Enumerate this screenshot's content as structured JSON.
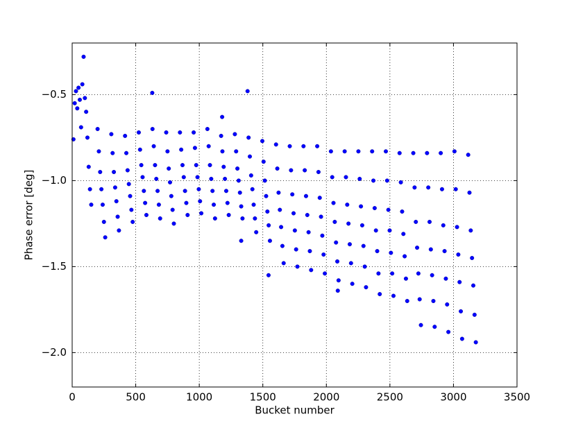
{
  "chart_data": {
    "type": "scatter",
    "xlabel": "Bucket number",
    "ylabel": "Phase error [deg]",
    "xlim": [
      0,
      3500
    ],
    "ylim": [
      -2.2,
      -0.2
    ],
    "xticks": [
      0,
      500,
      1000,
      1500,
      2000,
      2500,
      3000,
      3500
    ],
    "yticks": [
      {
        "value": -0.5,
        "label": "−0.5"
      },
      {
        "value": -1.0,
        "label": "−1.0"
      },
      {
        "value": -1.5,
        "label": "−1.5"
      },
      {
        "value": -2.0,
        "label": "−2.0"
      }
    ],
    "grid": true,
    "x": [
      10,
      20,
      30,
      40,
      50,
      60,
      70,
      80,
      90,
      100,
      110,
      120,
      130,
      140,
      150,
      200,
      210,
      220,
      230,
      240,
      250,
      260,
      308,
      318,
      328,
      338,
      348,
      358,
      368,
      416,
      426,
      436,
      446,
      456,
      466,
      476,
      524,
      534,
      544,
      554,
      564,
      574,
      584,
      632,
      642,
      652,
      662,
      672,
      682,
      692,
      740,
      750,
      760,
      770,
      780,
      790,
      800,
      848,
      858,
      868,
      878,
      888,
      898,
      908,
      956,
      966,
      976,
      986,
      996,
      1006,
      1016,
      1064,
      1074,
      1084,
      1094,
      1104,
      1114,
      1124,
      1172,
      1182,
      1192,
      1202,
      1212,
      1222,
      1232,
      1280,
      1290,
      1300,
      1310,
      1320,
      1330,
      1340,
      1388,
      1398,
      1408,
      1418,
      1428,
      1438,
      1448,
      1496,
      1506,
      1516,
      1526,
      1536,
      1546,
      1556,
      1604,
      1614,
      1624,
      1634,
      1644,
      1654,
      1664,
      1712,
      1722,
      1732,
      1742,
      1752,
      1762,
      1772,
      1820,
      1830,
      1840,
      1850,
      1860,
      1870,
      1880,
      1928,
      1938,
      1948,
      1958,
      1968,
      1978,
      1988,
      2036,
      2046,
      2056,
      2066,
      2076,
      2086,
      2096,
      2144,
      2154,
      2164,
      2174,
      2184,
      2194,
      2204,
      2252,
      2262,
      2272,
      2282,
      2292,
      2302,
      2312,
      2360,
      2370,
      2380,
      2390,
      2400,
      2410,
      2420,
      2468,
      2478,
      2488,
      2498,
      2508,
      2518,
      2528,
      2576,
      2586,
      2596,
      2606,
      2616,
      2626,
      2636,
      2684,
      2694,
      2704,
      2714,
      2724,
      2734,
      2744,
      2792,
      2802,
      2812,
      2822,
      2832,
      2842,
      2852,
      2900,
      2910,
      2920,
      2930,
      2940,
      2950,
      2960,
      3008,
      3018,
      3028,
      3038,
      3048,
      3058,
      3068,
      3116,
      3126,
      3136,
      3146,
      3156,
      3166,
      3176,
      630,
      1380,
      1180,
      1330,
      1545,
      2090
    ],
    "series": [
      {
        "color": "#0000ff",
        "values": [
          -0.76,
          -0.55,
          -0.48,
          -0.58,
          -0.46,
          -0.53,
          -0.69,
          -0.44,
          -0.28,
          -0.52,
          -0.6,
          -0.75,
          -0.92,
          -1.05,
          -1.14,
          -0.7,
          -0.83,
          -0.95,
          -1.05,
          -1.14,
          -1.24,
          -1.33,
          -0.73,
          -0.84,
          -0.95,
          -1.04,
          -1.12,
          -1.21,
          -1.29,
          -0.74,
          -0.84,
          -0.94,
          -1.02,
          -1.09,
          -1.17,
          -1.24,
          -0.72,
          -0.82,
          -0.91,
          -0.98,
          -1.06,
          -1.13,
          -1.2,
          -0.7,
          -0.8,
          -0.91,
          -0.99,
          -1.06,
          -1.14,
          -1.22,
          -0.72,
          -0.83,
          -0.93,
          -1.01,
          -1.09,
          -1.17,
          -1.25,
          -0.72,
          -0.82,
          -0.91,
          -0.98,
          -1.06,
          -1.13,
          -1.2,
          -0.72,
          -0.81,
          -0.91,
          -0.98,
          -1.05,
          -1.12,
          -1.19,
          -0.7,
          -0.8,
          -0.91,
          -0.99,
          -1.06,
          -1.14,
          -1.22,
          -0.74,
          -0.83,
          -0.92,
          -0.99,
          -1.06,
          -1.13,
          -1.2,
          -0.73,
          -0.83,
          -0.93,
          -1.0,
          -1.07,
          -1.15,
          -1.22,
          -0.75,
          -0.86,
          -0.97,
          -1.05,
          -1.14,
          -1.22,
          -1.3,
          -0.77,
          -0.89,
          -1.0,
          -1.09,
          -1.18,
          -1.26,
          -1.35,
          -0.79,
          -0.93,
          -1.07,
          -1.17,
          -1.27,
          -1.38,
          -1.48,
          -0.8,
          -0.94,
          -1.08,
          -1.19,
          -1.29,
          -1.4,
          -1.5,
          -0.8,
          -0.94,
          -1.09,
          -1.2,
          -1.3,
          -1.41,
          -1.52,
          -0.8,
          -0.95,
          -1.1,
          -1.21,
          -1.32,
          -1.43,
          -1.54,
          -0.83,
          -0.98,
          -1.13,
          -1.24,
          -1.36,
          -1.47,
          -1.58,
          -0.83,
          -0.98,
          -1.14,
          -1.25,
          -1.37,
          -1.48,
          -1.6,
          -0.83,
          -0.99,
          -1.15,
          -1.26,
          -1.38,
          -1.5,
          -1.62,
          -0.83,
          -1.0,
          -1.16,
          -1.29,
          -1.41,
          -1.54,
          -1.66,
          -0.83,
          -1.0,
          -1.17,
          -1.29,
          -1.42,
          -1.54,
          -1.67,
          -0.84,
          -1.01,
          -1.18,
          -1.31,
          -1.44,
          -1.57,
          -1.7,
          -0.84,
          -1.04,
          -1.24,
          -1.39,
          -1.54,
          -1.69,
          -1.84,
          -0.84,
          -1.04,
          -1.24,
          -1.4,
          -1.55,
          -1.7,
          -1.85,
          -0.84,
          -1.05,
          -1.26,
          -1.41,
          -1.57,
          -1.72,
          -1.88,
          -0.83,
          -1.05,
          -1.27,
          -1.43,
          -1.59,
          -1.76,
          -1.92,
          -0.85,
          -1.07,
          -1.29,
          -1.45,
          -1.61,
          -1.78,
          -1.94,
          -0.49,
          -0.48,
          -0.63,
          -1.35,
          -1.55,
          -1.64
        ]
      }
    ]
  }
}
